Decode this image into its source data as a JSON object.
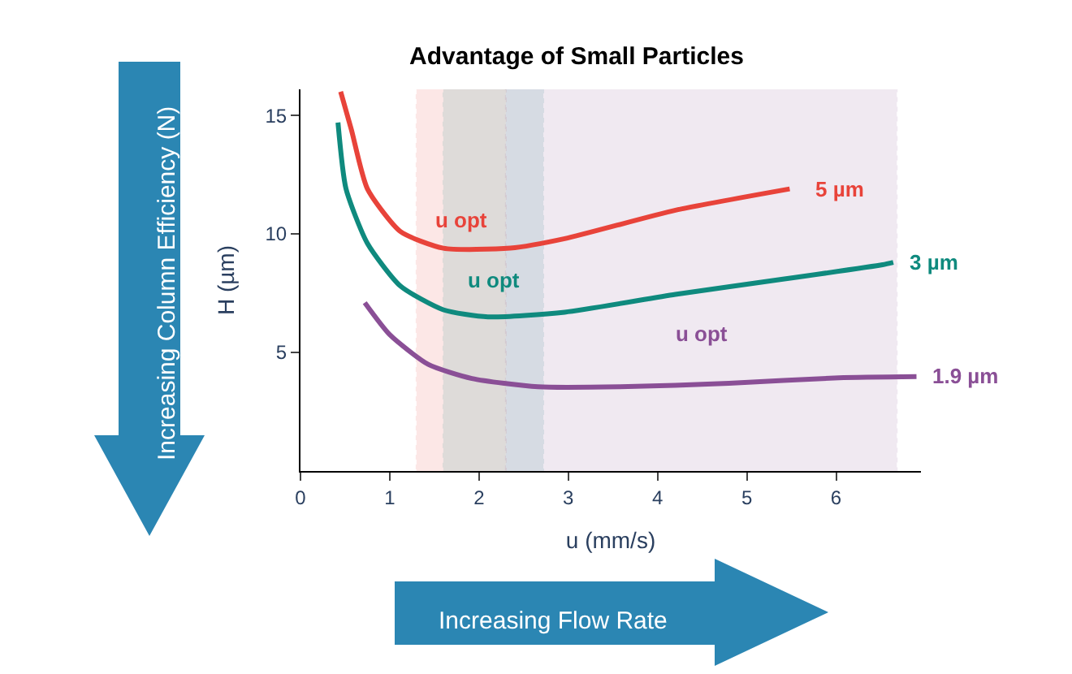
{
  "chart_data": {
    "type": "line",
    "title": "Advantage of Small Particles",
    "xlabel": "u (mm/s)",
    "ylabel": "H (µm)",
    "xlim": [
      0,
      6.95
    ],
    "ylim": [
      0,
      16.1
    ],
    "xticks": [
      0,
      1,
      2,
      3,
      4,
      5,
      6
    ],
    "yticks": [
      5,
      10,
      15
    ],
    "grid": false,
    "legend": false,
    "marker": "none",
    "line_style": "solid",
    "series": [
      {
        "name": "5 µm",
        "color": "#e8433a",
        "x": [
          0.45,
          0.57,
          0.75,
          1.12,
          1.6,
          2.35,
          2.96,
          4.2,
          5.48
        ],
        "values": [
          16.0,
          14.4,
          11.9,
          10.1,
          9.4,
          9.4,
          9.8,
          11.0,
          11.9
        ]
      },
      {
        "name": "3 µm",
        "color": "#0f8a7e",
        "x": [
          0.42,
          0.51,
          0.75,
          1.12,
          1.6,
          2.1,
          2.96,
          4.2,
          5.42,
          6.52,
          6.64
        ],
        "values": [
          14.7,
          11.9,
          9.6,
          7.8,
          6.8,
          6.5,
          6.7,
          7.45,
          8.1,
          8.7,
          8.8
        ]
      },
      {
        "name": "1.9 µm",
        "color": "#8a4f96",
        "x": [
          0.72,
          1.0,
          1.43,
          1.92,
          2.66,
          3.58,
          4.8,
          6.03,
          6.9
        ],
        "values": [
          7.1,
          5.75,
          4.5,
          3.9,
          3.55,
          3.55,
          3.7,
          3.93,
          3.98
        ]
      }
    ],
    "bands": [
      {
        "axis": "x",
        "from": 1.3,
        "to": 2.3,
        "color": "#e8433a",
        "label": "u opt"
      },
      {
        "axis": "x",
        "from": 1.6,
        "to": 2.72,
        "color": "#0f8a7e",
        "label": "u opt"
      },
      {
        "axis": "x",
        "from": 2.3,
        "to": 6.68,
        "color": "#8a4f96",
        "label": "u opt"
      }
    ],
    "annotations": [
      "Increasing Column Efficiency (N)",
      "Increasing Flow Rate"
    ]
  }
}
